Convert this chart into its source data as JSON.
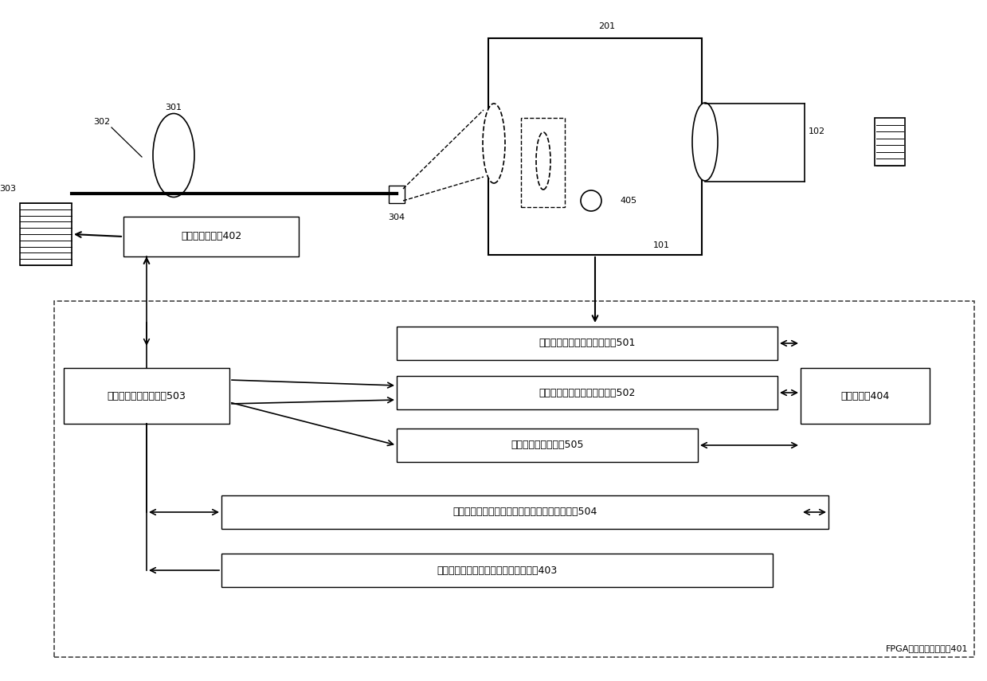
{
  "bg_color": "#ffffff",
  "line_color": "#000000",
  "labels": {
    "301": "301",
    "302": "302",
    "303": "303",
    "304": "304",
    "201": "201",
    "101": "101",
    "102": "102",
    "405": "405",
    "motor_ctrl": "电机伺服控制器402",
    "mod501": "红外视频数据的采集处理模块501",
    "mod502": "图像清晰度评价函数计算模块502",
    "mod503": "自动调焦功能控制模块503",
    "mod504": "温度、焦距和图像清晰度评价函数同步采样模块504",
    "mod505": "爬坡算法的实现模块505",
    "mod404": "动态存储器404",
    "mod403": "存储焦距温度补偶参数的非易失存储器403",
    "fpga": "FPGA嵌入式图像处理器401"
  }
}
